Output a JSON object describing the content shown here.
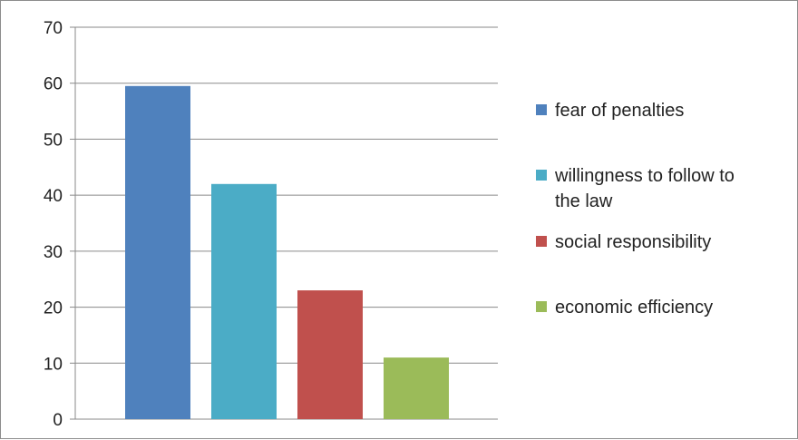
{
  "chart_data": {
    "type": "bar",
    "title": "",
    "xlabel": "",
    "ylabel": "",
    "ylim": [
      0,
      70
    ],
    "yticks": [
      0,
      10,
      20,
      30,
      40,
      50,
      60,
      70
    ],
    "grid": true,
    "legend_position": "right",
    "categories": [
      "fear of penalties",
      "willingness to follow to the law",
      "social responsibility",
      "economic efficiency"
    ],
    "legend_lines": [
      [
        "fear of penalties"
      ],
      [
        "willingness to follow to",
        "the law"
      ],
      [
        "social responsibility"
      ],
      [
        "economic efficiency"
      ]
    ],
    "values": [
      59.5,
      42,
      23,
      11
    ],
    "colors": [
      "#4f81bd",
      "#4bacc6",
      "#c0504d",
      "#9bbb59"
    ]
  }
}
